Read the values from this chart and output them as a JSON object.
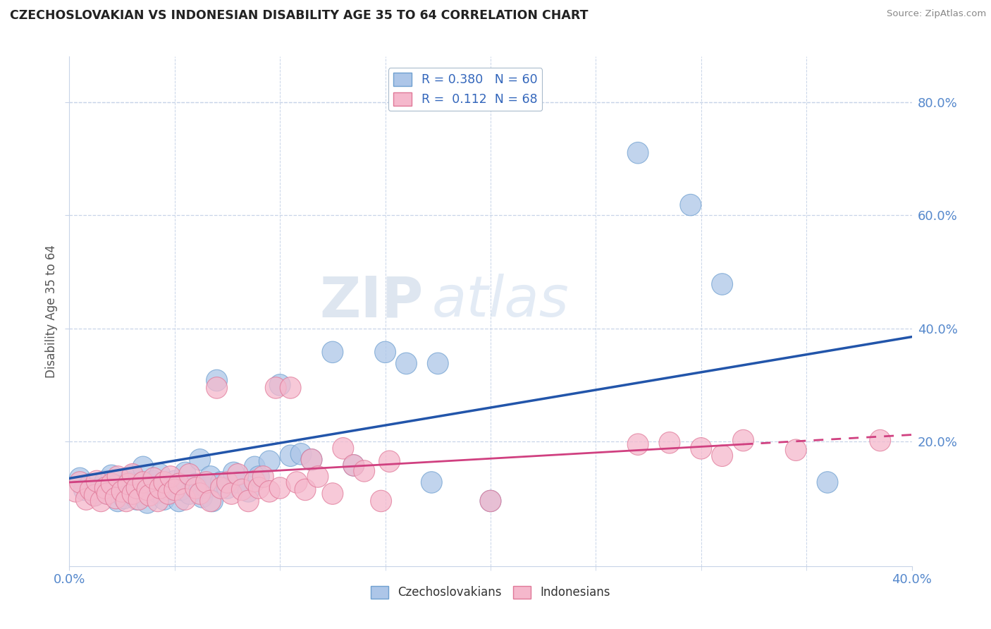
{
  "title": "CZECHOSLOVAKIAN VS INDONESIAN DISABILITY AGE 35 TO 64 CORRELATION CHART",
  "source": "Source: ZipAtlas.com",
  "ylabel": "Disability Age 35 to 64",
  "xlim": [
    0.0,
    0.4
  ],
  "ylim": [
    -0.02,
    0.88
  ],
  "blue_color": "#adc6e8",
  "blue_edge_color": "#6fa0d0",
  "pink_color": "#f5b8cc",
  "pink_edge_color": "#e07898",
  "blue_line_color": "#2255aa",
  "pink_line_color": "#d04080",
  "R_blue": 0.38,
  "N_blue": 60,
  "R_pink": 0.112,
  "N_pink": 68,
  "blue_scatter": [
    [
      0.005,
      0.135
    ],
    [
      0.007,
      0.115
    ],
    [
      0.01,
      0.125
    ],
    [
      0.012,
      0.105
    ],
    [
      0.015,
      0.118
    ],
    [
      0.017,
      0.13
    ],
    [
      0.018,
      0.108
    ],
    [
      0.02,
      0.14
    ],
    [
      0.022,
      0.122
    ],
    [
      0.023,
      0.095
    ],
    [
      0.025,
      0.115
    ],
    [
      0.026,
      0.1
    ],
    [
      0.028,
      0.128
    ],
    [
      0.03,
      0.14
    ],
    [
      0.03,
      0.108
    ],
    [
      0.032,
      0.098
    ],
    [
      0.033,
      0.118
    ],
    [
      0.035,
      0.155
    ],
    [
      0.037,
      0.092
    ],
    [
      0.038,
      0.125
    ],
    [
      0.04,
      0.13
    ],
    [
      0.042,
      0.11
    ],
    [
      0.043,
      0.142
    ],
    [
      0.045,
      0.098
    ],
    [
      0.047,
      0.115
    ],
    [
      0.05,
      0.13
    ],
    [
      0.052,
      0.095
    ],
    [
      0.053,
      0.115
    ],
    [
      0.055,
      0.145
    ],
    [
      0.057,
      0.108
    ],
    [
      0.06,
      0.125
    ],
    [
      0.062,
      0.168
    ],
    [
      0.063,
      0.102
    ],
    [
      0.065,
      0.118
    ],
    [
      0.067,
      0.138
    ],
    [
      0.068,
      0.095
    ],
    [
      0.07,
      0.308
    ],
    [
      0.072,
      0.128
    ],
    [
      0.075,
      0.118
    ],
    [
      0.078,
      0.145
    ],
    [
      0.08,
      0.128
    ],
    [
      0.085,
      0.112
    ],
    [
      0.088,
      0.155
    ],
    [
      0.09,
      0.138
    ],
    [
      0.095,
      0.165
    ],
    [
      0.1,
      0.3
    ],
    [
      0.105,
      0.175
    ],
    [
      0.11,
      0.178
    ],
    [
      0.115,
      0.168
    ],
    [
      0.125,
      0.358
    ],
    [
      0.135,
      0.158
    ],
    [
      0.15,
      0.358
    ],
    [
      0.16,
      0.338
    ],
    [
      0.172,
      0.128
    ],
    [
      0.175,
      0.338
    ],
    [
      0.2,
      0.095
    ],
    [
      0.27,
      0.71
    ],
    [
      0.295,
      0.618
    ],
    [
      0.31,
      0.478
    ],
    [
      0.36,
      0.128
    ]
  ],
  "pink_scatter": [
    [
      0.003,
      0.112
    ],
    [
      0.005,
      0.128
    ],
    [
      0.008,
      0.098
    ],
    [
      0.01,
      0.115
    ],
    [
      0.012,
      0.105
    ],
    [
      0.013,
      0.13
    ],
    [
      0.015,
      0.095
    ],
    [
      0.017,
      0.118
    ],
    [
      0.018,
      0.108
    ],
    [
      0.02,
      0.125
    ],
    [
      0.022,
      0.1
    ],
    [
      0.023,
      0.138
    ],
    [
      0.025,
      0.112
    ],
    [
      0.027,
      0.095
    ],
    [
      0.028,
      0.125
    ],
    [
      0.03,
      0.108
    ],
    [
      0.03,
      0.142
    ],
    [
      0.032,
      0.118
    ],
    [
      0.033,
      0.098
    ],
    [
      0.035,
      0.128
    ],
    [
      0.037,
      0.115
    ],
    [
      0.038,
      0.105
    ],
    [
      0.04,
      0.135
    ],
    [
      0.042,
      0.095
    ],
    [
      0.043,
      0.118
    ],
    [
      0.045,
      0.128
    ],
    [
      0.047,
      0.108
    ],
    [
      0.048,
      0.138
    ],
    [
      0.05,
      0.115
    ],
    [
      0.052,
      0.125
    ],
    [
      0.055,
      0.098
    ],
    [
      0.057,
      0.142
    ],
    [
      0.06,
      0.118
    ],
    [
      0.062,
      0.108
    ],
    [
      0.065,
      0.128
    ],
    [
      0.067,
      0.095
    ],
    [
      0.07,
      0.295
    ],
    [
      0.072,
      0.118
    ],
    [
      0.075,
      0.128
    ],
    [
      0.077,
      0.108
    ],
    [
      0.08,
      0.142
    ],
    [
      0.082,
      0.115
    ],
    [
      0.085,
      0.095
    ],
    [
      0.088,
      0.13
    ],
    [
      0.09,
      0.118
    ],
    [
      0.092,
      0.138
    ],
    [
      0.095,
      0.112
    ],
    [
      0.098,
      0.295
    ],
    [
      0.1,
      0.118
    ],
    [
      0.105,
      0.295
    ],
    [
      0.108,
      0.128
    ],
    [
      0.112,
      0.115
    ],
    [
      0.115,
      0.168
    ],
    [
      0.118,
      0.138
    ],
    [
      0.125,
      0.108
    ],
    [
      0.13,
      0.188
    ],
    [
      0.135,
      0.158
    ],
    [
      0.14,
      0.148
    ],
    [
      0.148,
      0.095
    ],
    [
      0.152,
      0.165
    ],
    [
      0.2,
      0.095
    ],
    [
      0.27,
      0.195
    ],
    [
      0.285,
      0.198
    ],
    [
      0.3,
      0.188
    ],
    [
      0.31,
      0.175
    ],
    [
      0.32,
      0.202
    ],
    [
      0.345,
      0.185
    ],
    [
      0.385,
      0.202
    ]
  ],
  "watermark_zip": "ZIP",
  "watermark_atlas": "atlas",
  "background_color": "#ffffff",
  "grid_color": "#c8d4e8",
  "legend_r_label1": "R = 0.380",
  "legend_n_label1": "N = 60",
  "legend_r_label2": "R =  0.112",
  "legend_n_label2": "N = 68"
}
